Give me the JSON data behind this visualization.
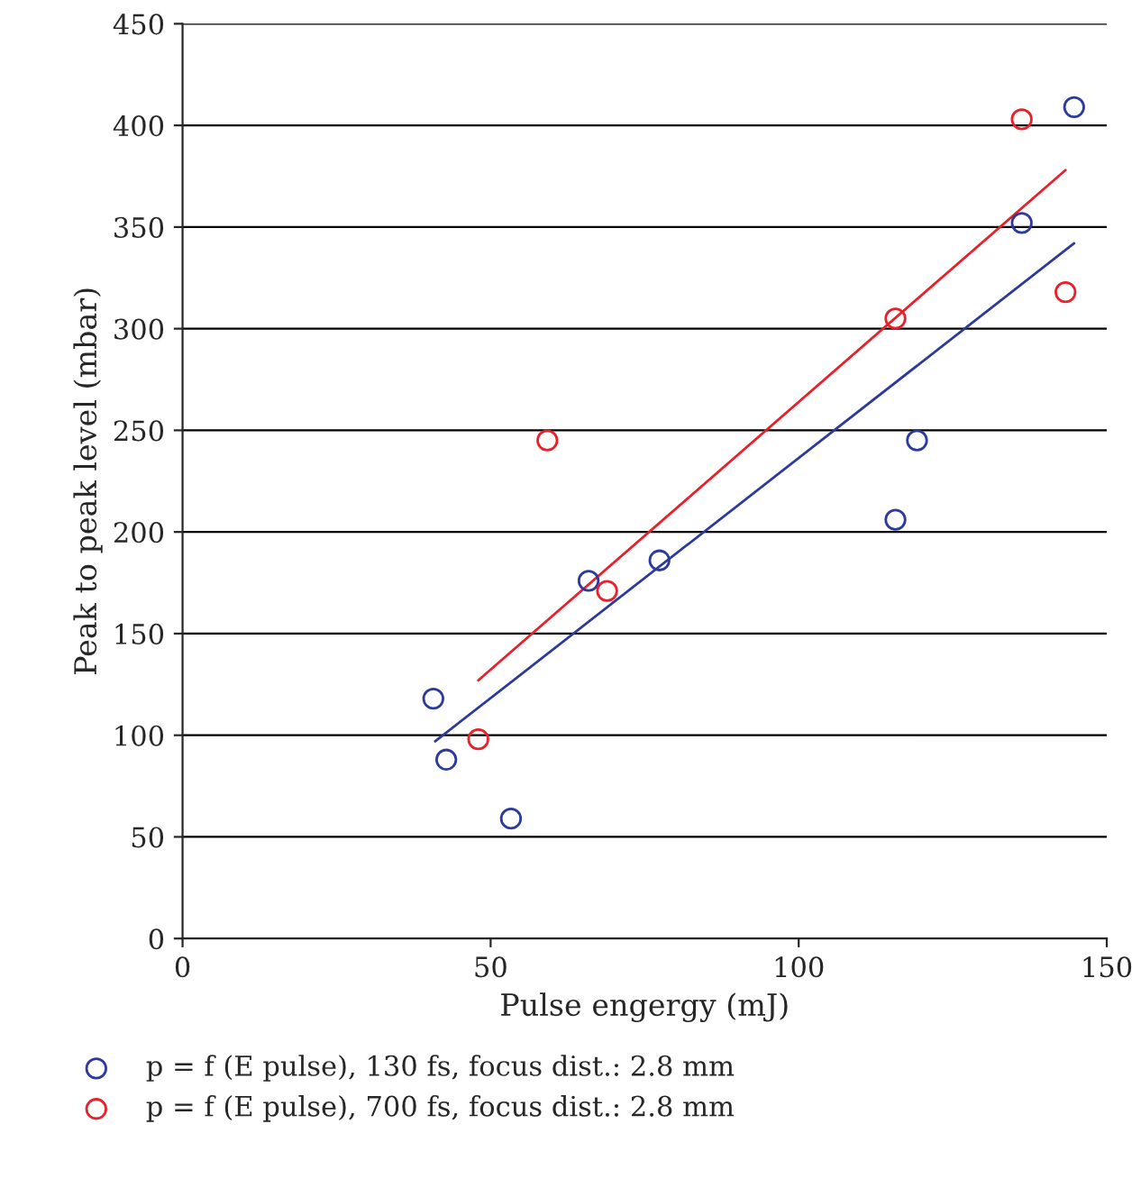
{
  "chart_data": {
    "type": "scatter",
    "xlabel": "Pulse engergy (mJ)",
    "ylabel": "Peak to peak level (mbar)",
    "xlim": [
      0,
      150
    ],
    "xticks": [
      0,
      50,
      100,
      150
    ],
    "ylim": [
      0,
      450
    ],
    "yticks": [
      0,
      50,
      100,
      150,
      200,
      250,
      300,
      350,
      400,
      450
    ],
    "grid": "y",
    "legend": "bottom",
    "marker": "circle",
    "series": [
      {
        "name": "p = f (E pulse), 130 fs, focus dist.: 2.8 mm",
        "color": "#2b3a9c",
        "x": [
          40.7,
          42.8,
          53.3,
          65.9,
          77.4,
          115.7,
          119.2,
          136.2,
          144.7
        ],
        "values": [
          118,
          88,
          59,
          176,
          186,
          206,
          245,
          352,
          409
        ]
      },
      {
        "name": "p = f (E pulse), 700 fs, focus dist.: 2.8 mm",
        "color": "#e8202a",
        "x": [
          48,
          59.2,
          68.9,
          115.7,
          136.2,
          143.3
        ],
        "values": [
          98,
          245,
          171,
          305,
          403,
          318
        ]
      },
      {
        "type": "line",
        "color": "#2b3a9c",
        "marker": "none",
        "x": [
          41,
          144.7
        ],
        "values": [
          97,
          342
        ]
      },
      {
        "type": "line",
        "color": "#e8202a",
        "marker": "none",
        "x": [
          48,
          143.3
        ],
        "values": [
          127,
          378
        ]
      }
    ]
  }
}
